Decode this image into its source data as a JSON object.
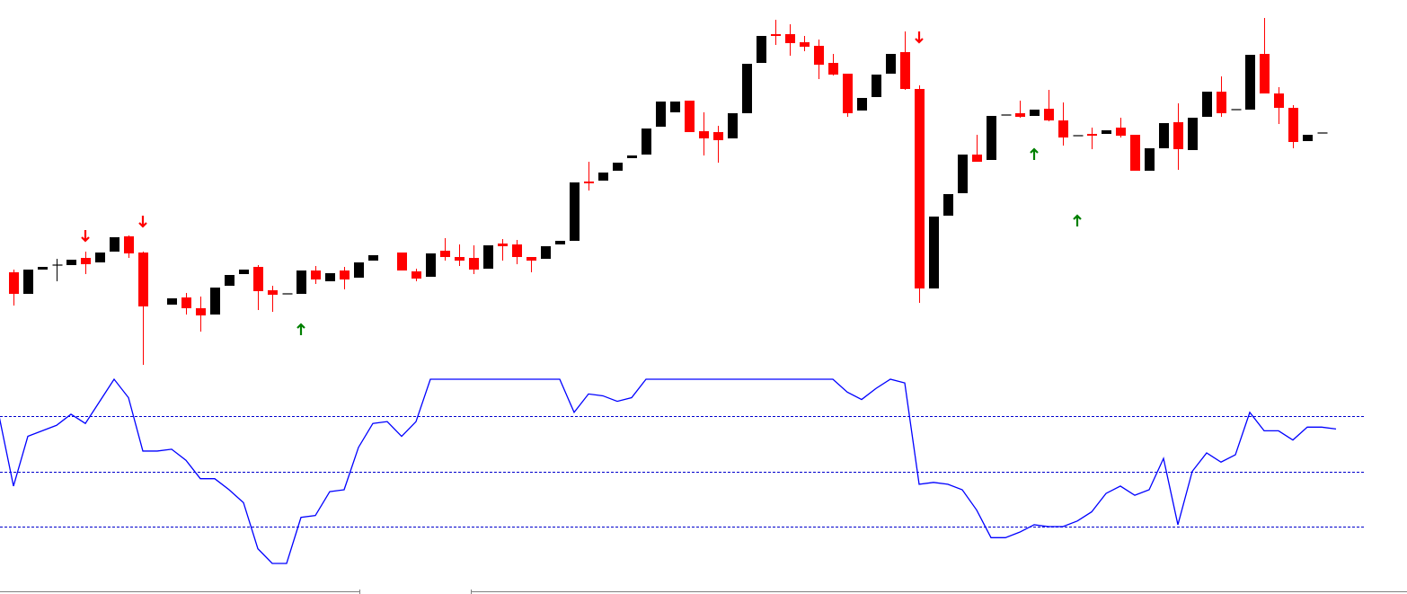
{
  "chart_data": [
    {
      "type": "candlestick",
      "x": [
        0,
        1,
        2,
        3,
        4,
        5,
        6,
        7,
        8,
        9,
        11,
        12,
        13,
        14,
        15,
        16,
        17,
        18,
        19,
        20,
        21,
        22,
        23,
        24,
        25,
        27,
        28,
        29,
        30,
        31,
        32,
        33,
        34,
        35,
        36,
        37,
        38,
        39,
        40,
        41,
        42,
        43,
        44,
        45,
        46,
        47,
        48,
        49,
        50,
        51,
        52,
        53,
        54,
        55,
        56,
        57,
        58,
        59,
        60,
        61,
        62,
        63,
        64,
        65,
        66,
        67,
        68,
        69,
        70,
        71,
        72,
        73,
        74,
        75,
        76,
        77,
        78,
        79,
        80,
        81,
        82,
        83,
        84,
        85,
        86,
        87,
        88,
        89,
        90,
        91
      ],
      "open": [
        117,
        93,
        120,
        125,
        125,
        133,
        128,
        140,
        157,
        139,
        81,
        89,
        77,
        70,
        102,
        115,
        123,
        97,
        93,
        93,
        119,
        107,
        119,
        111,
        130,
        139,
        118,
        112,
        141,
        134,
        133,
        121,
        149,
        148,
        134,
        132,
        148,
        152,
        218,
        219,
        230,
        244,
        248,
        279,
        295,
        308,
        274,
        273,
        266,
        294,
        350,
        382,
        382,
        373,
        369,
        350,
        338,
        297,
        312,
        338,
        362,
        321,
        99,
        180,
        205,
        248,
        242,
        292,
        294,
        291,
        299,
        286,
        269,
        271,
        271,
        278,
        270,
        230,
        255,
        284,
        253,
        290,
        318,
        298,
        298,
        360,
        316,
        300,
        263,
        272
      ],
      "high": [
        120,
        120,
        123,
        132,
        131,
        140,
        139,
        156,
        158,
        140,
        88,
        94,
        90,
        100,
        114,
        120,
        125,
        102,
        93,
        119,
        124,
        116,
        123,
        128,
        136,
        139,
        121,
        138,
        155,
        148,
        147,
        147,
        154,
        153,
        134,
        146,
        152,
        217,
        240,
        228,
        239,
        247,
        277,
        307,
        307,
        308,
        295,
        280,
        294,
        349,
        380,
        398,
        393,
        380,
        376,
        360,
        338,
        311,
        337,
        360,
        385,
        325,
        179,
        204,
        248,
        270,
        291,
        292,
        308,
        298,
        320,
        306,
        269,
        278,
        275,
        289,
        270,
        255,
        283,
        305,
        289,
        318,
        335,
        298,
        359,
        400,
        323,
        303,
        270,
        272
      ],
      "low": [
        80,
        93,
        120,
        107,
        125,
        115,
        128,
        140,
        133,
        14,
        81,
        70,
        51,
        70,
        102,
        115,
        75,
        73,
        93,
        93,
        104,
        107,
        98,
        111,
        130,
        119,
        107,
        112,
        130,
        124,
        115,
        121,
        130,
        126,
        117,
        132,
        148,
        152,
        208,
        219,
        230,
        244,
        248,
        279,
        295,
        273,
        247,
        239,
        266,
        294,
        350,
        370,
        358,
        363,
        332,
        336,
        290,
        297,
        312,
        338,
        320,
        83,
        99,
        180,
        205,
        240,
        242,
        292,
        289,
        291,
        285,
        258,
        269,
        254,
        271,
        267,
        230,
        230,
        255,
        231,
        253,
        290,
        290,
        298,
        298,
        316,
        282,
        255,
        263,
        272
      ],
      "close": [
        93,
        120,
        123,
        125,
        131,
        126,
        139,
        156,
        138,
        79,
        88,
        77,
        69,
        100,
        114,
        120,
        96,
        92,
        93,
        119,
        109,
        116,
        109,
        128,
        136,
        119,
        110,
        138,
        134,
        130,
        120,
        147,
        146,
        134,
        130,
        146,
        152,
        217,
        216,
        228,
        239,
        247,
        277,
        307,
        307,
        273,
        266,
        264,
        294,
        349,
        380,
        380,
        372,
        368,
        348,
        337,
        294,
        311,
        337,
        360,
        321,
        99,
        179,
        204,
        248,
        240,
        291,
        292,
        290,
        298,
        286,
        267,
        269,
        269,
        275,
        269,
        230,
        255,
        283,
        254,
        289,
        318,
        294,
        298,
        359,
        316,
        300,
        262,
        270,
        272
      ],
      "up_color": "#000000",
      "down_color": "#ff0000",
      "xlim": [
        -0.9375,
        96.9375
      ],
      "ylim": [
        0,
        420
      ],
      "sell_signals": {
        "x": [
          5,
          9,
          63
        ],
        "values": [
          158,
          174,
          379
        ],
        "color": "#ff0000"
      },
      "buy_signals": {
        "x": [
          20,
          71,
          74
        ],
        "values": [
          53,
          248,
          174
        ],
        "color": "#008000"
      }
    },
    {
      "type": "line",
      "x": [
        -1,
        0,
        1,
        2,
        3,
        4,
        5,
        6,
        7,
        8,
        9,
        10,
        11,
        12,
        13,
        14,
        15,
        16,
        17,
        18,
        19,
        20,
        21,
        22,
        23,
        24,
        25,
        26,
        27,
        28,
        29,
        30,
        31,
        32,
        33,
        34,
        35,
        36,
        37,
        38,
        39,
        40,
        41,
        42,
        43,
        44,
        45,
        46,
        47,
        48,
        49,
        50,
        51,
        52,
        53,
        54,
        55,
        56,
        57,
        58,
        59,
        60,
        61,
        62,
        63,
        64,
        65,
        66,
        67,
        68,
        69,
        70,
        71,
        72,
        73,
        74,
        75,
        76,
        77,
        78,
        79,
        80,
        81,
        82,
        83,
        84,
        85,
        86,
        87,
        88,
        89,
        90,
        91,
        92
      ],
      "values": [
        80,
        42,
        69,
        72,
        75,
        81,
        76,
        88,
        100,
        90,
        61,
        61,
        62,
        56,
        46,
        46,
        40,
        33,
        8,
        0,
        0,
        25,
        26,
        39,
        40,
        63,
        76,
        77,
        69,
        77,
        100,
        100,
        100,
        100,
        100,
        100,
        100,
        100,
        100,
        100,
        82,
        92,
        91,
        88,
        90,
        100,
        100,
        100,
        100,
        100,
        100,
        100,
        100,
        100,
        100,
        100,
        100,
        100,
        100,
        93,
        89,
        95,
        100,
        98,
        43,
        44,
        43,
        40,
        29,
        14,
        14,
        17,
        21,
        20,
        20,
        23,
        28,
        38,
        42,
        37,
        40,
        57,
        21,
        50,
        60,
        55,
        59,
        82,
        72,
        72,
        67,
        74,
        74,
        73
      ],
      "color": "#0000ff",
      "xlim": [
        -0.9375,
        96.9375
      ],
      "ylim": [
        0,
        100
      ],
      "levels": [
        20,
        50,
        80
      ],
      "level_color": "#0000cc"
    }
  ]
}
